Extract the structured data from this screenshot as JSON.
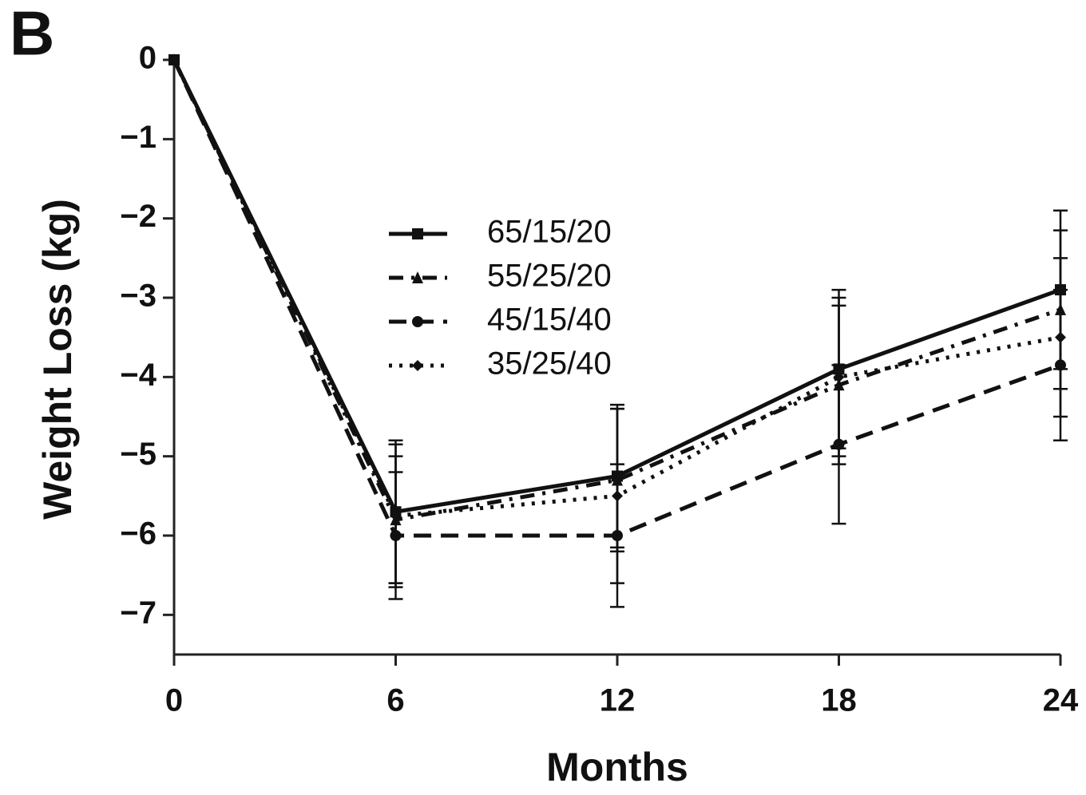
{
  "chart_data": {
    "type": "line",
    "panel_label": "B",
    "x_label": "Months",
    "y_label": "Weight Loss (kg)",
    "x": [
      0,
      6,
      12,
      18,
      24
    ],
    "xlim": [
      0,
      24
    ],
    "xticks": [
      0,
      6,
      12,
      18,
      24
    ],
    "ylim": [
      -7.5,
      0
    ],
    "yticks": [
      0,
      {
        "value": -1,
        "label": "−1"
      },
      {
        "value": -2,
        "label": "−2"
      },
      {
        "value": -3,
        "label": "−3"
      },
      {
        "value": -4,
        "label": "−4"
      },
      {
        "value": -5,
        "label": "−5"
      },
      {
        "value": -6,
        "label": "−6"
      },
      {
        "value": -7,
        "label": "−7"
      }
    ],
    "series": [
      {
        "name": "65/15/20",
        "color": "#111111",
        "dash": "solid",
        "marker": "square",
        "values": [
          0,
          -5.7,
          -5.25,
          -3.9,
          -2.9
        ],
        "errors": [
          null,
          0.9,
          0.9,
          1.0,
          1.0
        ]
      },
      {
        "name": "55/25/20",
        "color": "#111111",
        "dash": "dashdot",
        "marker": "triangle",
        "values": [
          0,
          -5.8,
          -5.3,
          -4.1,
          -3.15
        ],
        "errors": [
          null,
          0.8,
          0.9,
          1.0,
          1.0
        ]
      },
      {
        "name": "45/15/40",
        "color": "#111111",
        "dash": "dashed",
        "marker": "circle",
        "values": [
          0,
          -6.0,
          -6.0,
          -4.85,
          -3.85
        ],
        "errors": [
          null,
          0.8,
          0.9,
          1.0,
          0.95
        ]
      },
      {
        "name": "35/25/40",
        "color": "#111111",
        "dash": "dotted",
        "marker": "diamond",
        "values": [
          0,
          -5.75,
          -5.5,
          -4.0,
          -3.5
        ],
        "errors": [
          null,
          0.9,
          1.1,
          1.0,
          1.0
        ]
      }
    ]
  }
}
